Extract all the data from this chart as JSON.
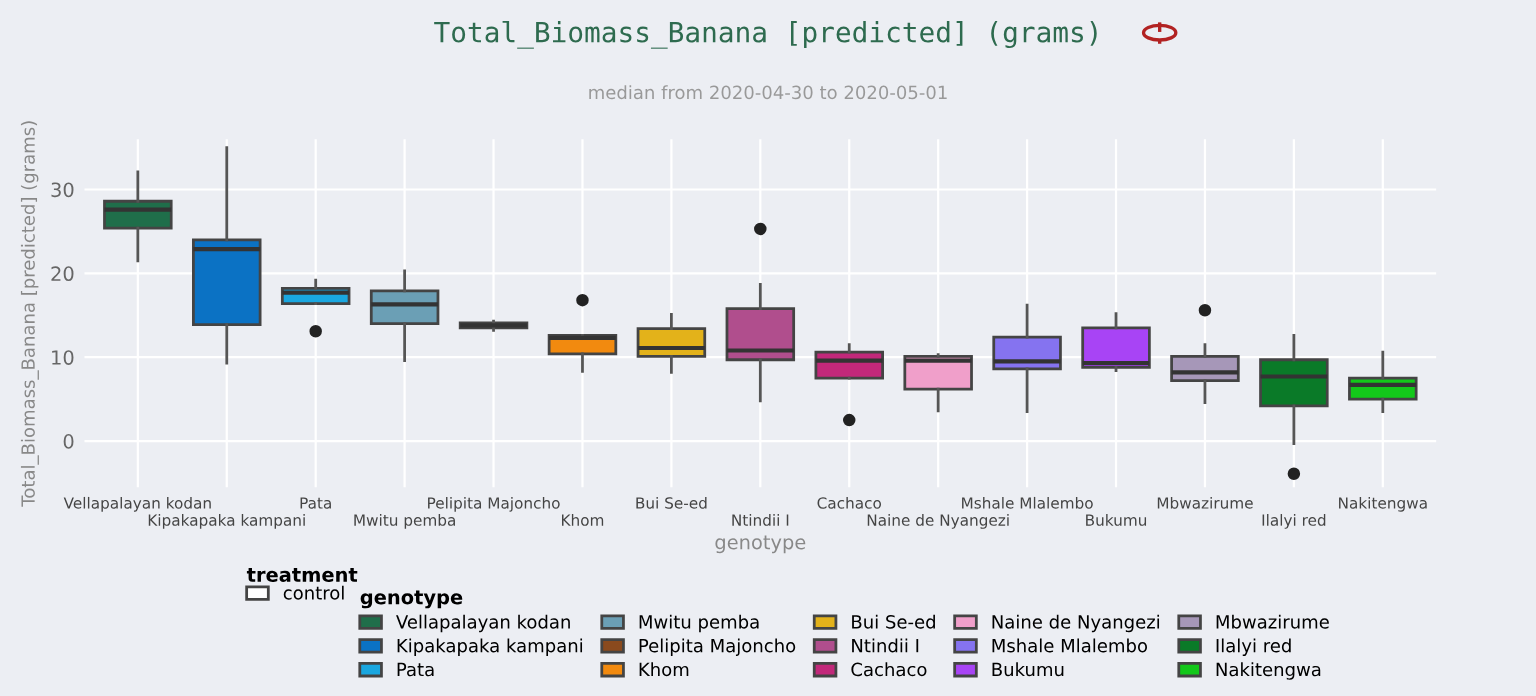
{
  "chart_data": {
    "type": "box",
    "title": "Total_Biomass_Banana [predicted] (grams)",
    "subtitle": "median from 2020-04-30 to 2020-05-01",
    "xlabel": "genotype",
    "ylabel": "Total_Biomass_Banana [predicted] (grams)",
    "legend_title": "genotype",
    "annotations": [
      "treatment"
    ],
    "categories": [
      "Vellapalayan kodan",
      "Kipakapaka kampani",
      "Pata",
      "Mwitu pemba",
      "Pelipita Majoncho",
      "Khom",
      "Bui Se-ed",
      "Ntindii I",
      "Cachaco",
      "Naine de Nyangezi",
      "Mshale Mlalembo",
      "Bukumu",
      "Mbwazirume",
      "Ilalyi red",
      "Nakitengwa"
    ],
    "series": [
      {
        "name": "control",
        "colors": [
          "#1f6e4a",
          "#0b72c4",
          "#1aa7e0",
          "#6b9fb5",
          "#8a4a1e",
          "#f28a0f",
          "#e3b21a",
          "#b04e8d",
          "#c2287a",
          "#f09fca",
          "#8573f0",
          "#a844f5",
          "#a697b8",
          "#0a7a28",
          "#13c81a"
        ],
        "boxes": [
          {
            "low": 21.5,
            "q1": 25.4,
            "median": 27.6,
            "q3": 28.6,
            "high": 32.1
          },
          {
            "low": 9.3,
            "q1": 13.9,
            "median": 22.9,
            "q3": 24.0,
            "high": 35.0
          },
          {
            "low": 16.4,
            "q1": 16.4,
            "median": 17.7,
            "q3": 18.2,
            "high": 19.2,
            "outliers": [
              13.1
            ]
          },
          {
            "low": 9.6,
            "q1": 14.0,
            "median": 16.3,
            "q3": 17.9,
            "high": 20.3
          },
          {
            "low": 13.2,
            "q1": 13.5,
            "median": 13.8,
            "q3": 14.1,
            "high": 14.3
          },
          {
            "low": 8.3,
            "q1": 10.4,
            "median": 12.3,
            "q3": 12.6,
            "high": 12.6,
            "outliers": [
              16.8
            ]
          },
          {
            "low": 8.2,
            "q1": 10.1,
            "median": 11.1,
            "q3": 13.4,
            "high": 15.1
          },
          {
            "low": 4.8,
            "q1": 9.7,
            "median": 10.8,
            "q3": 15.8,
            "high": 18.7,
            "outliers": [
              25.3
            ]
          },
          {
            "low": 7.5,
            "q1": 7.5,
            "median": 9.6,
            "q3": 10.6,
            "high": 11.5,
            "outliers": [
              2.5
            ]
          },
          {
            "low": 3.6,
            "q1": 6.2,
            "median": 9.6,
            "q3": 10.1,
            "high": 10.3
          },
          {
            "low": 3.5,
            "q1": 8.6,
            "median": 9.5,
            "q3": 12.4,
            "high": 16.2
          },
          {
            "low": 8.4,
            "q1": 8.8,
            "median": 9.3,
            "q3": 13.5,
            "high": 15.2
          },
          {
            "low": 4.6,
            "q1": 7.2,
            "median": 8.2,
            "q3": 10.1,
            "high": 11.5,
            "outliers": [
              15.6
            ]
          },
          {
            "low": -0.3,
            "q1": 4.2,
            "median": 7.7,
            "q3": 9.7,
            "high": 12.6,
            "outliers": [
              -3.9
            ]
          },
          {
            "low": 3.5,
            "q1": 5.0,
            "median": 6.7,
            "q3": 7.5,
            "high": 10.6
          }
        ]
      }
    ],
    "ylim": [
      -5.5,
      36
    ],
    "yticks": [
      0,
      10,
      20,
      30
    ],
    "grid": true,
    "legend": "bottom"
  }
}
